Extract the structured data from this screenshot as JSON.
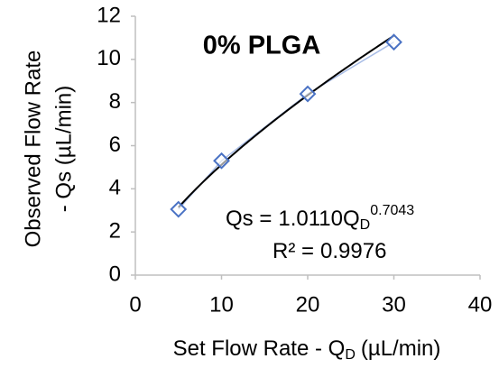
{
  "chart_data": {
    "type": "scatter",
    "title": "0% PLGA",
    "x_label": [
      "Set Flow Rate - Q",
      "D",
      "(µL/min)"
    ],
    "y_label": [
      "Observed Flow Rate",
      "- Qs (µL/min)"
    ],
    "x": [
      5,
      10,
      20,
      30
    ],
    "series": [
      {
        "color": "#4a72c4",
        "values": [
          3.05,
          5.3,
          8.4,
          10.8
        ]
      }
    ],
    "trendline": {
      "type": "power",
      "color": "#000000",
      "lhs": "Qs =",
      "coefficient": {
        "value": 1.011,
        "label": "1.0110"
      },
      "variable": "Q",
      "subscript": "D",
      "exponent": 0.7043,
      "r2_label": "R² =",
      "r2": 0.9976
    },
    "xlim": [
      0,
      40
    ],
    "xticks": [
      0,
      10,
      20,
      30,
      40
    ],
    "ylim": [
      0,
      12
    ],
    "yticks": [
      0,
      2,
      4,
      6,
      8,
      10,
      12
    ],
    "grid": false
  }
}
